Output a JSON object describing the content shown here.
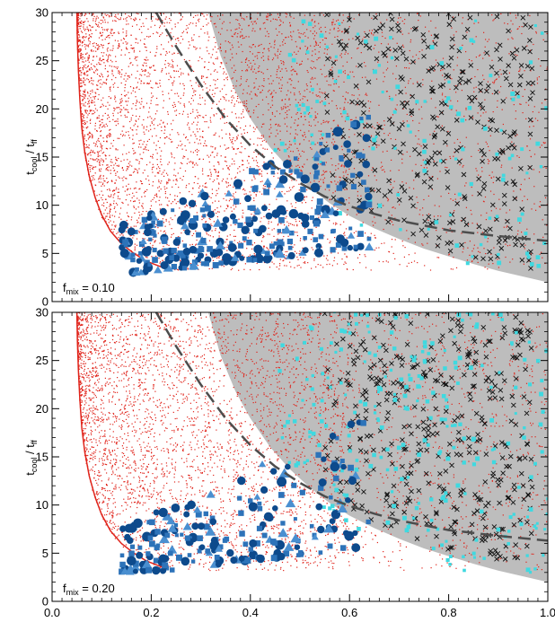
{
  "chart_data": [
    {
      "type": "scatter",
      "panel": "top",
      "ylabel": "t_cool / t_ff",
      "ylabel_main": "t",
      "ylabel_sub1": "cool",
      "ylabel_div": " / t",
      "ylabel_sub2": "ff",
      "xlim": [
        0.0,
        1.0
      ],
      "ylim": [
        0,
        30
      ],
      "yticks": [
        "0",
        "5",
        "10",
        "15",
        "20",
        "25",
        "30"
      ],
      "annotation_main": "f",
      "annotation_sub": "mix",
      "annotation_value": " = 0.10",
      "curves": {
        "red_solid": {
          "x": [
            0.05,
            0.051,
            0.053,
            0.056,
            0.06,
            0.066,
            0.075,
            0.087,
            0.1,
            0.118,
            0.14,
            0.165,
            0.19,
            0.21,
            0.225
          ],
          "y": [
            30,
            27,
            24,
            21,
            18,
            15.5,
            13,
            10.8,
            9,
            7.3,
            6,
            5,
            4.2,
            3.8,
            3.5
          ]
        },
        "dashed": {
          "x": [
            0.21,
            0.25,
            0.3,
            0.35,
            0.4,
            0.45,
            0.5,
            0.55,
            0.6,
            0.65,
            0.7,
            0.8,
            0.9,
            1.0
          ],
          "y": [
            30,
            26.5,
            22.5,
            19,
            16.2,
            14,
            12.3,
            10.9,
            9.9,
            9.1,
            8.4,
            7.4,
            6.8,
            6.3
          ]
        },
        "shade_boundary": {
          "x": [
            0.315,
            0.34,
            0.37,
            0.4,
            0.44,
            0.48,
            0.52,
            0.56,
            0.6,
            0.65,
            0.7,
            0.75,
            0.8,
            0.85,
            0.9,
            0.95,
            1.0
          ],
          "y": [
            30,
            25.5,
            21.8,
            19,
            16,
            13.7,
            11.8,
            10.2,
            8.9,
            7.6,
            6.5,
            5.5,
            4.7,
            3.9,
            3.2,
            2.6,
            2.0
          ]
        }
      },
      "series": [
        {
          "name": "simulated (red dots)",
          "color": "#e0241b",
          "count": 6000
        },
        {
          "name": "observed, circle",
          "color": "#0d4a8c"
        },
        {
          "name": "observed, square",
          "color": "#2d73b9"
        },
        {
          "name": "observed, triangle",
          "color": "#4a8fd0"
        },
        {
          "name": "cyan",
          "color": "#3fd9e0"
        },
        {
          "name": "cross",
          "color": "#111111"
        }
      ]
    },
    {
      "type": "scatter",
      "panel": "bottom",
      "ylabel": "t_cool / t_ff",
      "ylabel_main": "t",
      "ylabel_sub1": "cool",
      "ylabel_div": " / t",
      "ylabel_sub2": "ff",
      "xlim": [
        0.0,
        1.0
      ],
      "ylim": [
        0,
        30
      ],
      "yticks": [
        "0",
        "5",
        "10",
        "15",
        "20",
        "25",
        "30"
      ],
      "xticks": [
        "0.0",
        "0.2",
        "0.4",
        "0.6",
        "0.8",
        "1.0"
      ],
      "annotation_main": "f",
      "annotation_sub": "mix",
      "annotation_value": " = 0.20",
      "curves": {
        "red_solid": {
          "x": [
            0.05,
            0.051,
            0.053,
            0.056,
            0.06,
            0.066,
            0.075,
            0.087,
            0.1,
            0.118,
            0.14,
            0.165,
            0.19,
            0.21,
            0.225
          ],
          "y": [
            30,
            27,
            24,
            21,
            18,
            15.5,
            13,
            10.8,
            9,
            7.3,
            6,
            5,
            4.2,
            3.8,
            3.5
          ]
        },
        "dashed": {
          "x": [
            0.21,
            0.25,
            0.3,
            0.35,
            0.4,
            0.45,
            0.5,
            0.55,
            0.6,
            0.65,
            0.7,
            0.8,
            0.9,
            1.0
          ],
          "y": [
            30,
            26.5,
            22.5,
            19,
            16.2,
            14,
            12.3,
            10.9,
            9.9,
            9.1,
            8.4,
            7.4,
            6.8,
            6.3
          ]
        },
        "shade_boundary": {
          "x": [
            0.315,
            0.34,
            0.37,
            0.4,
            0.44,
            0.48,
            0.52,
            0.56,
            0.6,
            0.65,
            0.7,
            0.75,
            0.8,
            0.85,
            0.9,
            0.95,
            1.0
          ],
          "y": [
            30,
            25.5,
            21.8,
            19,
            16,
            13.7,
            11.8,
            10.2,
            8.9,
            7.6,
            6.5,
            5.5,
            4.7,
            3.9,
            3.2,
            2.6,
            2.0
          ]
        }
      },
      "series": [
        {
          "name": "simulated (red dots)",
          "color": "#e0241b",
          "count": 6000
        },
        {
          "name": "observed, circle",
          "color": "#0d4a8c"
        },
        {
          "name": "observed, square",
          "color": "#2d73b9"
        },
        {
          "name": "observed, triangle",
          "color": "#4a8fd0"
        },
        {
          "name": "cyan",
          "color": "#3fd9e0"
        },
        {
          "name": "cross",
          "color": "#111111"
        }
      ]
    }
  ],
  "colors": {
    "shade": "#bdbdbd",
    "red": "#e0241b",
    "dashed": "#4d4d4d"
  }
}
